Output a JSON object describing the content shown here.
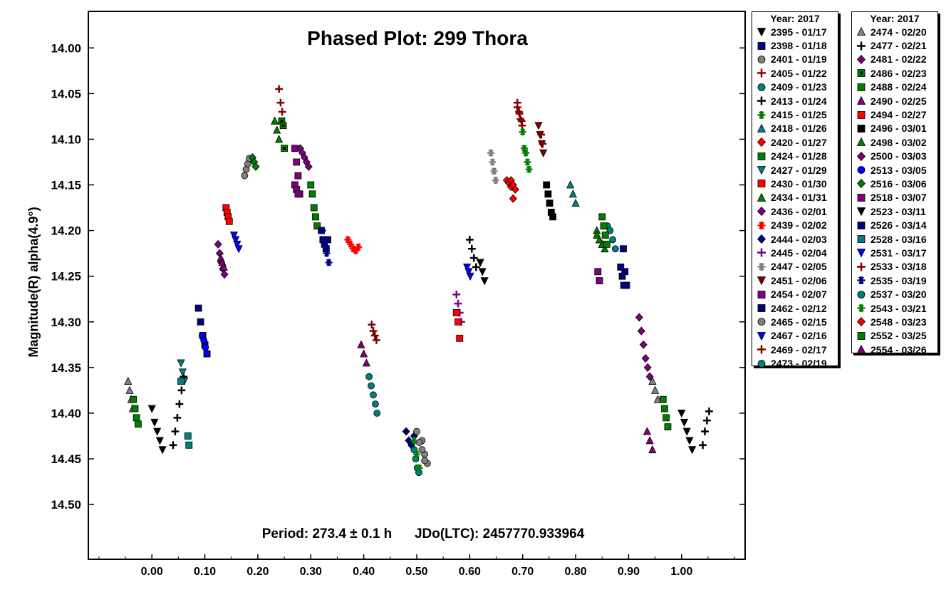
{
  "chart_data": {
    "type": "scatter",
    "title": "Phased Plot: 299 Thora",
    "ylabel": "Magnitude(R) alpha(4.9°)",
    "xlabel": "",
    "annotation": "Period: 273.4 ± 0.1 h      JDo(LTC): 2457770.933964",
    "xlim": [
      -0.12,
      1.12
    ],
    "ylim": [
      14.56,
      13.96
    ],
    "y_inverted": true,
    "x_ticks": [
      "0.00",
      "0.10",
      "0.20",
      "0.30",
      "0.40",
      "0.50",
      "0.60",
      "0.70",
      "0.80",
      "0.90",
      "1.00"
    ],
    "y_ticks": [
      "14.00",
      "14.05",
      "14.10",
      "14.15",
      "14.20",
      "14.25",
      "14.30",
      "14.35",
      "14.40",
      "14.45",
      "14.50"
    ],
    "grid": false,
    "legend_placement": "right-outside",
    "legend_title_1": "Year: 2017",
    "legend_title_2": "Year: 2017",
    "series": [
      {
        "name": "2395 - 01/17",
        "marker": "tri-down",
        "color": "#000000",
        "x": [
          0.0,
          0.005,
          0.01,
          0.015,
          0.02,
          1.0,
          1.005,
          1.01,
          1.015,
          1.02
        ],
        "y": [
          14.395,
          14.41,
          14.42,
          14.43,
          14.44,
          14.4,
          14.41,
          14.42,
          14.43,
          14.44
        ]
      },
      {
        "name": "2398 - 01/18",
        "marker": "square",
        "color": "#000080",
        "x": [
          0.088,
          0.092,
          0.096,
          0.1,
          0.104,
          0.89,
          0.893,
          0.896
        ],
        "y": [
          14.285,
          14.3,
          14.315,
          14.325,
          14.335,
          14.22,
          14.245,
          14.26
        ]
      },
      {
        "name": "2401 - 01/19",
        "marker": "circle",
        "color": "#808080",
        "x": [
          0.175,
          0.178,
          0.181,
          0.184,
          0.51,
          0.515,
          0.52
        ],
        "y": [
          14.14,
          14.133,
          14.127,
          14.121,
          14.43,
          14.445,
          14.455
        ]
      },
      {
        "name": "2405 - 01/22",
        "marker": "plus",
        "color": "#800000",
        "x": [
          0.24,
          0.243,
          0.246,
          0.69,
          0.693,
          0.696,
          0.699
        ],
        "y": [
          14.045,
          14.06,
          14.07,
          14.06,
          14.07,
          14.078,
          14.085
        ]
      },
      {
        "name": "2409 - 01/23",
        "marker": "circle",
        "color": "#008080",
        "x": [
          0.41,
          0.414,
          0.418,
          0.422,
          0.425
        ],
        "y": [
          14.36,
          14.37,
          14.38,
          14.39,
          14.4
        ]
      },
      {
        "name": "2413 - 01/24",
        "marker": "plus",
        "color": "#000000",
        "x": [
          0.04,
          0.044,
          0.048,
          0.052,
          0.056,
          0.06,
          1.04,
          1.044,
          1.048,
          1.052
        ],
        "y": [
          14.435,
          14.42,
          14.405,
          14.39,
          14.375,
          14.36,
          14.435,
          14.42,
          14.408,
          14.398
        ]
      },
      {
        "name": "2415 - 01/25",
        "marker": "asterisk",
        "color": "#008000",
        "x": [
          0.7,
          0.703,
          0.706,
          0.709,
          0.712
        ],
        "y": [
          14.092,
          14.11,
          14.115,
          14.125,
          14.133
        ]
      },
      {
        "name": "2418 - 01/26",
        "marker": "tri-up",
        "color": "#008080",
        "x": [
          0.79,
          0.795,
          0.8
        ],
        "y": [
          14.15,
          14.16,
          14.17
        ]
      },
      {
        "name": "2420 - 01/27",
        "marker": "diamond",
        "color": "#ff0000",
        "x": [
          0.67,
          0.674,
          0.678,
          0.682
        ],
        "y": [
          14.145,
          14.148,
          14.152,
          14.165
        ]
      },
      {
        "name": "2424 - 01/28",
        "marker": "square",
        "color": "#008000",
        "x": [
          0.3,
          0.303,
          0.306,
          0.309,
          0.312
        ],
        "y": [
          14.15,
          14.16,
          14.175,
          14.185,
          14.195
        ]
      },
      {
        "name": "2427 - 01/29",
        "marker": "tri-down",
        "color": "#008080",
        "x": [
          0.055,
          0.058,
          0.061
        ],
        "y": [
          14.345,
          14.355,
          14.365
        ]
      },
      {
        "name": "2430 - 01/30",
        "marker": "square",
        "color": "#ff0000",
        "x": [
          0.14,
          0.142,
          0.144,
          0.146
        ],
        "y": [
          14.175,
          14.18,
          14.185,
          14.19
        ]
      },
      {
        "name": "2434 - 01/31",
        "marker": "tri-up",
        "color": "#008000",
        "x": [
          0.232,
          0.236,
          0.24,
          0.84,
          0.845,
          0.85,
          0.855
        ],
        "y": [
          14.08,
          14.09,
          14.1,
          14.2,
          14.21,
          14.215,
          14.22
        ]
      },
      {
        "name": "2436 - 02/01",
        "marker": "diamond",
        "color": "#800080",
        "x": [
          0.92,
          0.924,
          0.928,
          0.932,
          0.936,
          0.94
        ],
        "y": [
          14.295,
          14.31,
          14.325,
          14.34,
          14.35,
          14.36
        ]
      },
      {
        "name": "2439 - 02/02",
        "marker": "asterisk",
        "color": "#ff0000",
        "x": [
          0.37,
          0.375,
          0.38,
          0.385,
          0.39
        ],
        "y": [
          14.21,
          14.215,
          14.22,
          14.222,
          14.218
        ]
      },
      {
        "name": "2444 - 02/03",
        "marker": "diamond",
        "color": "#000080",
        "x": [
          0.48,
          0.485,
          0.49,
          0.495
        ],
        "y": [
          14.42,
          14.43,
          14.435,
          14.425
        ]
      },
      {
        "name": "2445 - 02/04",
        "marker": "plus",
        "color": "#800080",
        "x": [
          0.575,
          0.578,
          0.581,
          0.584
        ],
        "y": [
          14.27,
          14.28,
          14.29,
          14.3
        ]
      },
      {
        "name": "2447 - 02/05",
        "marker": "asterisk",
        "color": "#808080",
        "x": [
          0.64,
          0.643,
          0.646,
          0.649
        ],
        "y": [
          14.115,
          14.125,
          14.135,
          14.145
        ]
      },
      {
        "name": "2451 - 02/06",
        "marker": "tri-down",
        "color": "#800000",
        "x": [
          0.73,
          0.733,
          0.736,
          0.739
        ],
        "y": [
          14.085,
          14.095,
          14.105,
          14.115
        ]
      },
      {
        "name": "2454 - 02/07",
        "marker": "square",
        "color": "#800080",
        "x": [
          0.27,
          0.273,
          0.276,
          0.279,
          0.842,
          0.845
        ],
        "y": [
          14.11,
          14.125,
          14.14,
          14.16,
          14.245,
          14.255
        ]
      },
      {
        "name": "2462 - 02/12",
        "marker": "square",
        "color": "#000080",
        "x": [
          0.32,
          0.323,
          0.326,
          0.329,
          0.332
        ],
        "y": [
          14.2,
          14.21,
          14.215,
          14.22,
          14.21
        ]
      },
      {
        "name": "2465 - 02/15",
        "marker": "circle",
        "color": "#808080",
        "x": [
          0.5,
          0.505,
          0.51,
          0.515
        ],
        "y": [
          14.42,
          14.432,
          14.44,
          14.452
        ]
      },
      {
        "name": "2467 - 02/16",
        "marker": "tri-down",
        "color": "#0000ff",
        "x": [
          0.155,
          0.158,
          0.161,
          0.164
        ],
        "y": [
          14.205,
          14.21,
          14.215,
          14.22
        ]
      },
      {
        "name": "2469 - 02/17",
        "marker": "plus",
        "color": "#800000",
        "x": [
          0.415,
          0.418,
          0.421,
          0.424
        ],
        "y": [
          14.303,
          14.31,
          14.315,
          14.32
        ]
      },
      {
        "name": "2473 - 02/19",
        "marker": "circle",
        "color": "#008080",
        "x": [
          0.495,
          0.498,
          0.501,
          0.504
        ],
        "y": [
          14.44,
          14.45,
          14.46,
          14.465
        ]
      },
      {
        "name": "2474 - 02/20",
        "marker": "tri-up",
        "color": "#808080",
        "x": [
          -0.045,
          -0.042,
          -0.039,
          -0.036,
          0.945,
          0.95,
          0.955
        ],
        "y": [
          14.365,
          14.375,
          14.385,
          14.395,
          14.365,
          14.375,
          14.385
        ]
      },
      {
        "name": "2477 - 02/21",
        "marker": "plus",
        "color": "#000000",
        "x": [
          0.6,
          0.604,
          0.608,
          0.612
        ],
        "y": [
          14.21,
          14.22,
          14.23,
          14.24
        ]
      },
      {
        "name": "2481 - 02/22",
        "marker": "diamond",
        "color": "#800080",
        "x": [
          0.125,
          0.128,
          0.131,
          0.134,
          0.137
        ],
        "y": [
          14.215,
          14.225,
          14.235,
          14.242,
          14.248
        ]
      },
      {
        "name": "2486 - 02/23",
        "marker": "square-dot",
        "color": "#008000",
        "x": [
          0.245,
          0.248,
          0.25
        ],
        "y": [
          14.08,
          14.085,
          14.11
        ]
      },
      {
        "name": "2488 - 02/24",
        "marker": "square",
        "color": "#008000",
        "x": [
          -0.035,
          -0.032,
          -0.029,
          -0.026,
          0.965,
          0.968,
          0.971,
          0.974
        ],
        "y": [
          14.385,
          14.395,
          14.405,
          14.412,
          14.385,
          14.395,
          14.405,
          14.415
        ]
      },
      {
        "name": "2490 - 02/25",
        "marker": "tri-up",
        "color": "#800080",
        "x": [
          0.395,
          0.4,
          0.405,
          0.935,
          0.94,
          0.945
        ],
        "y": [
          14.325,
          14.335,
          14.345,
          14.42,
          14.43,
          14.44
        ]
      },
      {
        "name": "2494 - 02/27",
        "marker": "square",
        "color": "#ff0000",
        "x": [
          0.575,
          0.578,
          0.581
        ],
        "y": [
          14.29,
          14.3,
          14.318
        ]
      },
      {
        "name": "2496 - 03/01",
        "marker": "square",
        "color": "#000000",
        "x": [
          0.745,
          0.748,
          0.751,
          0.754,
          0.757
        ],
        "y": [
          14.15,
          14.16,
          14.17,
          14.18,
          14.185
        ]
      },
      {
        "name": "2498 - 03/02",
        "marker": "tri-up",
        "color": "#008000",
        "x": [
          0.84,
          0.845,
          0.85
        ],
        "y": [
          14.205,
          14.21,
          14.215
        ]
      },
      {
        "name": "2500 - 03/03",
        "marker": "diamond",
        "color": "#800080",
        "x": [
          0.28,
          0.284,
          0.288,
          0.292,
          0.296
        ],
        "y": [
          14.11,
          14.115,
          14.12,
          14.125,
          14.13
        ]
      },
      {
        "name": "2513 - 03/05",
        "marker": "circle",
        "color": "#0000ff",
        "x": [
          0.095,
          0.098,
          0.101,
          0.104
        ],
        "y": [
          14.315,
          14.32,
          14.328,
          14.335
        ]
      },
      {
        "name": "2516 - 03/06",
        "marker": "diamond",
        "color": "#008000",
        "x": [
          0.19,
          0.193,
          0.196
        ],
        "y": [
          14.12,
          14.125,
          14.13
        ]
      },
      {
        "name": "2518 - 03/07",
        "marker": "square",
        "color": "#800080",
        "x": [
          0.27,
          0.273,
          0.276
        ],
        "y": [
          14.15,
          14.155,
          14.16
        ]
      },
      {
        "name": "2523 - 03/11",
        "marker": "tri-down",
        "color": "#000000",
        "x": [
          0.62,
          0.624,
          0.628
        ],
        "y": [
          14.235,
          14.245,
          14.255
        ]
      },
      {
        "name": "2526 - 03/14",
        "marker": "square",
        "color": "#000080",
        "x": [
          0.885,
          0.888,
          0.891
        ],
        "y": [
          14.24,
          14.25,
          14.26
        ]
      },
      {
        "name": "2528 - 03/16",
        "marker": "square",
        "color": "#008080",
        "x": [
          0.055,
          0.068,
          0.07
        ],
        "y": [
          14.365,
          14.425,
          14.435
        ]
      },
      {
        "name": "2531 - 03/17",
        "marker": "tri-down",
        "color": "#0000ff",
        "x": [
          0.595,
          0.598,
          0.601
        ],
        "y": [
          14.24,
          14.245,
          14.25
        ]
      },
      {
        "name": "2533 - 03/18",
        "marker": "plus",
        "color": "#800000",
        "x": [
          0.69,
          0.694,
          0.698,
          0.735,
          0.738
        ],
        "y": [
          14.065,
          14.072,
          14.08,
          14.095,
          14.105
        ]
      },
      {
        "name": "2535 - 03/19",
        "marker": "asterisk",
        "color": "#000080",
        "x": [
          0.322,
          0.326,
          0.33,
          0.334
        ],
        "y": [
          14.2,
          14.215,
          14.225,
          14.235
        ]
      },
      {
        "name": "2537 - 03/20",
        "marker": "circle",
        "color": "#008080",
        "x": [
          0.86,
          0.865,
          0.87,
          0.875
        ],
        "y": [
          14.195,
          14.2,
          14.21,
          14.22
        ]
      },
      {
        "name": "2543 - 03/21",
        "marker": "asterisk",
        "color": "#008000",
        "x": [
          0.495,
          0.5,
          0.505
        ],
        "y": [
          14.43,
          14.445,
          14.46
        ]
      },
      {
        "name": "2548 - 03/23",
        "marker": "diamond",
        "color": "#ff0000",
        "x": [
          0.678,
          0.682,
          0.686
        ],
        "y": [
          14.145,
          14.15,
          14.155
        ]
      },
      {
        "name": "2552 - 03/25",
        "marker": "square",
        "color": "#008000",
        "x": [
          0.85,
          0.853,
          0.856,
          0.859
        ],
        "y": [
          14.185,
          14.195,
          14.205,
          14.215
        ]
      },
      {
        "name": "2554 - 03/26",
        "marker": "tri-up",
        "color": "#800080",
        "x": [
          0.13,
          0.133,
          0.136
        ],
        "y": [
          14.23,
          14.235,
          14.24
        ]
      }
    ]
  }
}
